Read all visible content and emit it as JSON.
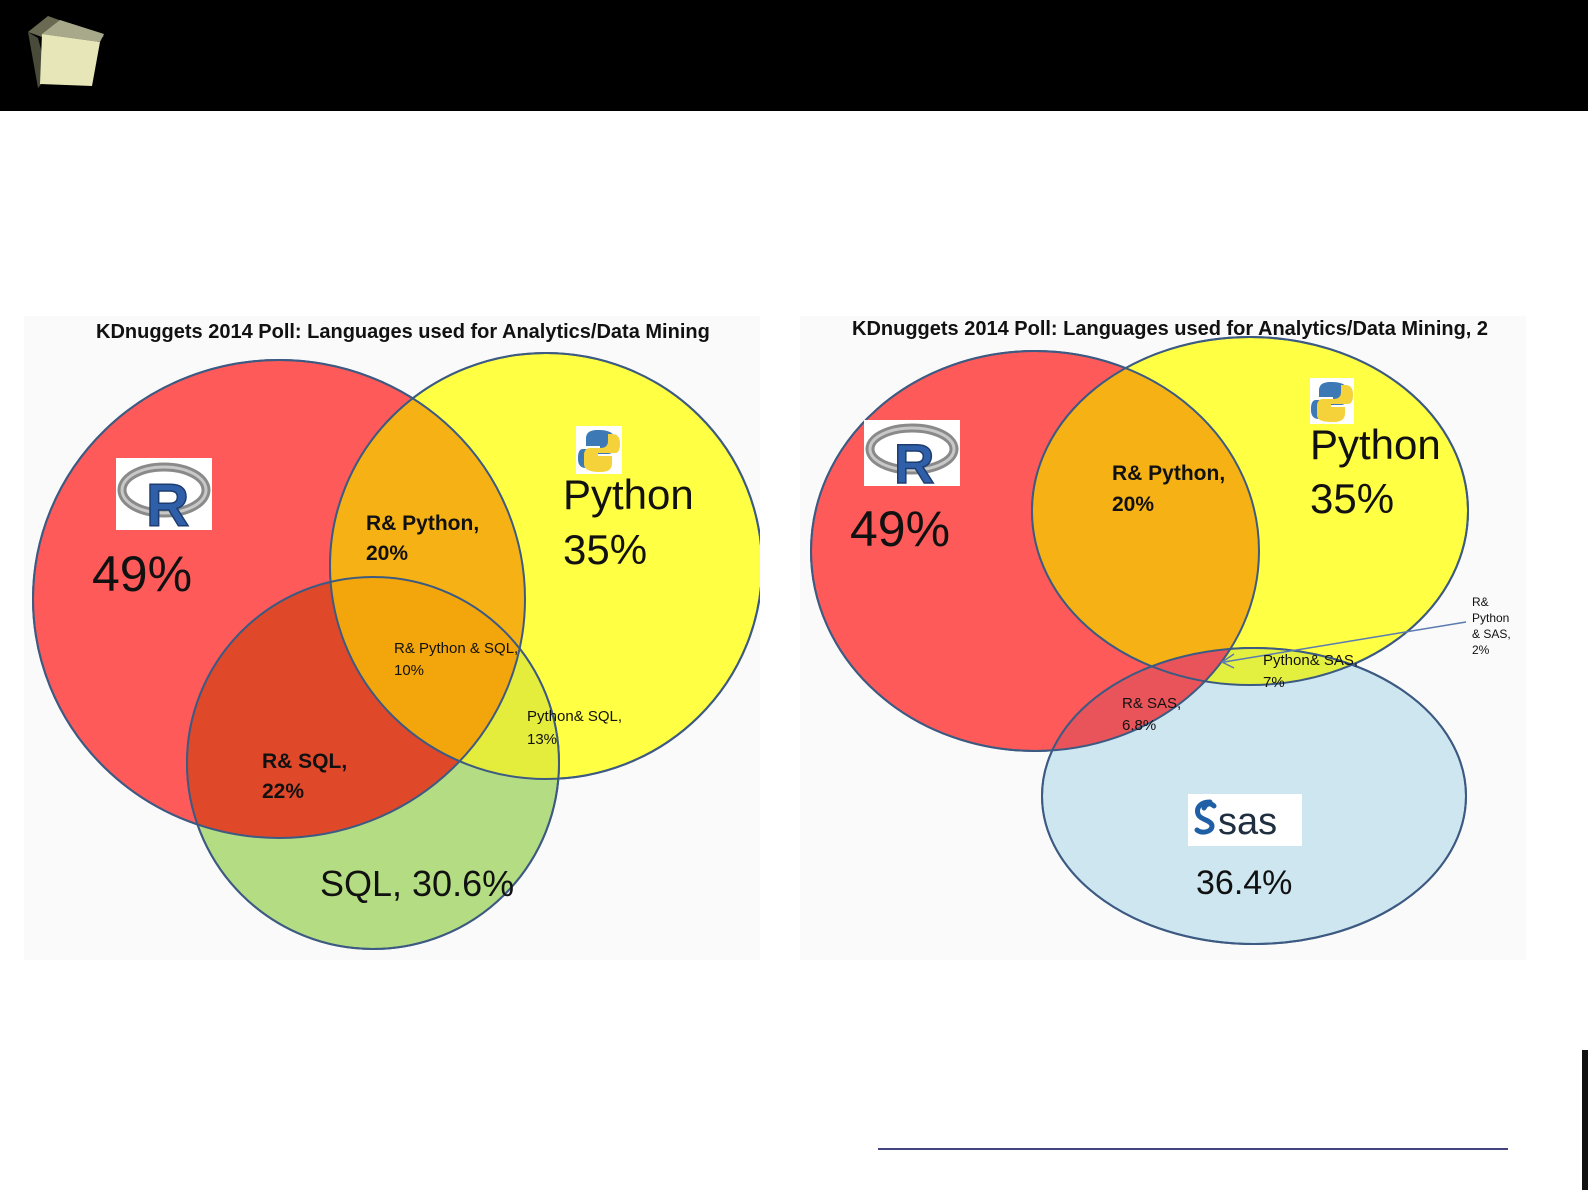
{
  "colors": {
    "header": "#000000",
    "r": "#ff5a5a",
    "python": "#ffff44",
    "sql": "#b4dc82",
    "sas": "#cde6f0",
    "r_python_overlap": "#f6b214",
    "r_sql_overlap": "#e0482a",
    "outline": "#3c5a82"
  },
  "icons": [
    "cube-icon",
    "r-logo-icon",
    "python-logo-icon",
    "sas-logo-icon"
  ],
  "left_chart": {
    "title": "KDnuggets 2014 Poll: Languages used for Analytics/Data Mining",
    "r_value": "49%",
    "python_name": "Python",
    "python_value": "35%",
    "r_python_label": "R& Python,",
    "r_python_value": "20%",
    "r_python_sql_label": "R& Python  & SQL,",
    "r_python_sql_value": "10%",
    "python_sql_label": "Python& SQL,",
    "python_sql_value": "13%",
    "r_sql_label": "R& SQL,",
    "r_sql_value": "22%",
    "sql_label": "SQL, 30.6%"
  },
  "right_chart": {
    "title": "KDnuggets 2014 Poll: Languages used for Analytics/Data Mining, 2",
    "r_value": "49%",
    "python_name": "Python",
    "python_value": "35%",
    "r_python_label": "R& Python,",
    "r_python_value": "20%",
    "r_python_sas_label_1": "R&",
    "r_python_sas_label_2": "Python",
    "r_python_sas_label_3": "& SAS,",
    "r_python_sas_value": "2%",
    "python_sas_label": "Python& SAS,",
    "python_sas_value": "7%",
    "r_sas_label": "R& SAS,",
    "r_sas_value": "6.8%",
    "sas_logo_text": "sas",
    "sas_value": "36.4%"
  }
}
